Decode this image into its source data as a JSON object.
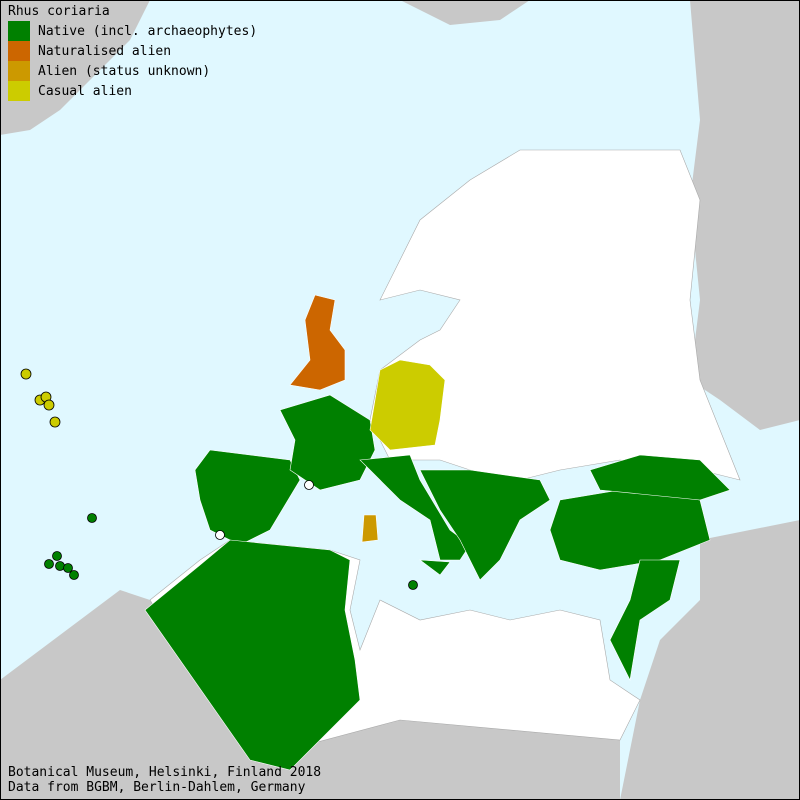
{
  "title": "Rhus coriaria",
  "legend": [
    {
      "label": "Native (incl. archaeophytes)",
      "color": "#008000"
    },
    {
      "label": "Naturalised alien",
      "color": "#cc6600"
    },
    {
      "label": "Alien (status unknown)",
      "color": "#cc9900"
    },
    {
      "label": "Casual alien",
      "color": "#cccc00"
    }
  ],
  "colors": {
    "sea": "#e0f8ff",
    "outside_land": "#c8c8c8",
    "no_record": "#ffffff"
  },
  "footer": {
    "line1": "Botanical Museum, Helsinki, Finland 2018",
    "line2": "Data from BGBM, Berlin-Dahlem, Germany"
  }
}
